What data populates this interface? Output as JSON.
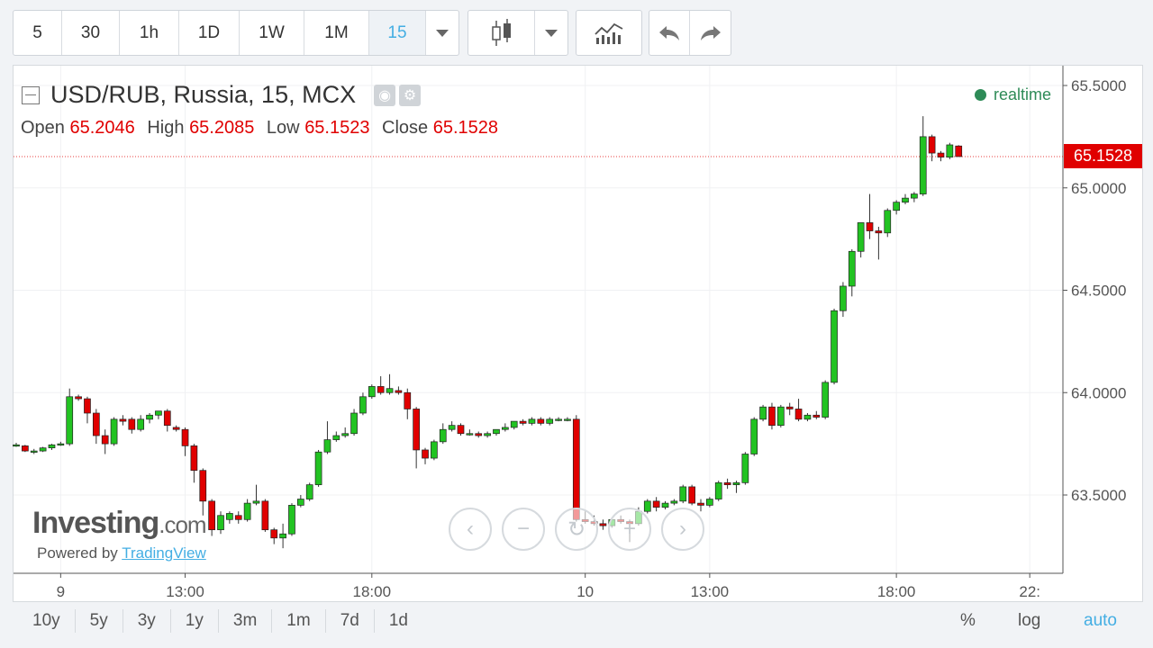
{
  "toolbar": {
    "intervals": [
      "5",
      "30",
      "1h",
      "1D",
      "1W",
      "1M"
    ],
    "active_interval": "15"
  },
  "legend": {
    "title": "USD/RUB, Russia, 15, MCX",
    "open_label": "Open",
    "open": "65.2046",
    "high_label": "High",
    "high": "65.2085",
    "low_label": "Low",
    "low": "65.1523",
    "close_label": "Close",
    "close": "65.1528",
    "realtime": "realtime"
  },
  "last_price": "65.1528",
  "watermark": {
    "brand": "Investing",
    "brand_suffix": ".com",
    "powered_by": "Powered by",
    "tradingview": "TradingView"
  },
  "ranges": [
    "10y",
    "5y",
    "3y",
    "1y",
    "3m",
    "1m",
    "7d",
    "1d"
  ],
  "options": {
    "percent": "%",
    "log": "log",
    "auto": "auto"
  },
  "colors": {
    "up": "#22c322",
    "down": "#e00000",
    "accent": "#44aee3"
  },
  "chart_data": {
    "type": "candlestick",
    "y_ticks": [
      "65.5000",
      "65.0000",
      "64.5000",
      "64.0000",
      "63.5000"
    ],
    "y_tick_values": [
      65.5,
      65.0,
      64.5,
      64.0,
      63.5
    ],
    "ylim": [
      63.1,
      65.6
    ],
    "x_ticks": [
      "9",
      "13:00",
      "18:00",
      "10",
      "13:00",
      "18:00",
      "22:"
    ],
    "x_tick_index": [
      5,
      19,
      40,
      64,
      78,
      99,
      114
    ],
    "last_price": 65.1528,
    "ohlc": [
      [
        63.745,
        63.755,
        63.735,
        63.745
      ],
      [
        63.74,
        63.745,
        63.71,
        63.715
      ],
      [
        63.715,
        63.725,
        63.7,
        63.715
      ],
      [
        63.715,
        63.735,
        63.71,
        63.73
      ],
      [
        63.73,
        63.75,
        63.72,
        63.745
      ],
      [
        63.745,
        63.76,
        63.74,
        63.75
      ],
      [
        63.75,
        64.02,
        63.74,
        63.98
      ],
      [
        63.98,
        63.99,
        63.96,
        63.97
      ],
      [
        63.97,
        63.98,
        63.85,
        63.9
      ],
      [
        63.9,
        63.92,
        63.75,
        63.79
      ],
      [
        63.79,
        63.82,
        63.7,
        63.75
      ],
      [
        63.75,
        63.88,
        63.74,
        63.87
      ],
      [
        63.87,
        63.89,
        63.84,
        63.86
      ],
      [
        63.87,
        63.88,
        63.8,
        63.82
      ],
      [
        63.82,
        63.89,
        63.81,
        63.87
      ],
      [
        63.87,
        63.9,
        63.85,
        63.89
      ],
      [
        63.89,
        63.91,
        63.87,
        63.91
      ],
      [
        63.91,
        63.92,
        63.81,
        63.84
      ],
      [
        63.83,
        63.84,
        63.81,
        63.82
      ],
      [
        63.82,
        63.83,
        63.69,
        63.74
      ],
      [
        63.74,
        63.75,
        63.56,
        63.62
      ],
      [
        63.62,
        63.63,
        63.4,
        63.47
      ],
      [
        63.47,
        63.48,
        63.3,
        63.33
      ],
      [
        63.33,
        63.42,
        63.31,
        63.4
      ],
      [
        63.38,
        63.42,
        63.36,
        63.41
      ],
      [
        63.4,
        63.42,
        63.36,
        63.38
      ],
      [
        63.38,
        63.48,
        63.37,
        63.46
      ],
      [
        63.46,
        63.55,
        63.45,
        63.47
      ],
      [
        63.47,
        63.48,
        63.32,
        63.33
      ],
      [
        63.33,
        63.34,
        63.26,
        63.29
      ],
      [
        63.29,
        63.36,
        63.24,
        63.31
      ],
      [
        63.31,
        63.46,
        63.3,
        63.45
      ],
      [
        63.45,
        63.5,
        63.44,
        63.48
      ],
      [
        63.48,
        63.56,
        63.47,
        63.55
      ],
      [
        63.55,
        63.72,
        63.54,
        63.71
      ],
      [
        63.71,
        63.86,
        63.7,
        63.77
      ],
      [
        63.77,
        63.81,
        63.76,
        63.79
      ],
      [
        63.79,
        63.83,
        63.78,
        63.8
      ],
      [
        63.8,
        63.92,
        63.79,
        63.9
      ],
      [
        63.9,
        64.0,
        63.89,
        63.98
      ],
      [
        63.98,
        64.04,
        63.97,
        64.03
      ],
      [
        64.03,
        64.08,
        63.99,
        64.0
      ],
      [
        64.0,
        64.09,
        63.99,
        64.02
      ],
      [
        64.01,
        64.03,
        63.99,
        64.0
      ],
      [
        64.0,
        64.02,
        63.87,
        63.92
      ],
      [
        63.92,
        63.93,
        63.63,
        63.72
      ],
      [
        63.72,
        63.73,
        63.65,
        63.68
      ],
      [
        63.68,
        63.77,
        63.67,
        63.76
      ],
      [
        63.76,
        63.85,
        63.75,
        63.82
      ],
      [
        63.82,
        63.86,
        63.81,
        63.84
      ],
      [
        63.84,
        63.85,
        63.79,
        63.8
      ],
      [
        63.8,
        63.82,
        63.79,
        63.8
      ],
      [
        63.8,
        63.81,
        63.78,
        63.79
      ],
      [
        63.79,
        63.81,
        63.78,
        63.8
      ],
      [
        63.8,
        63.82,
        63.79,
        63.82
      ],
      [
        63.82,
        63.85,
        63.81,
        63.83
      ],
      [
        63.83,
        63.86,
        63.82,
        63.86
      ],
      [
        63.86,
        63.87,
        63.84,
        63.85
      ],
      [
        63.85,
        63.88,
        63.84,
        63.87
      ],
      [
        63.87,
        63.88,
        63.84,
        63.85
      ],
      [
        63.85,
        63.88,
        63.84,
        63.87
      ],
      [
        63.87,
        63.88,
        63.86,
        63.87
      ],
      [
        63.87,
        63.88,
        63.86,
        63.87
      ],
      [
        63.87,
        63.89,
        63.37,
        63.38
      ],
      [
        63.38,
        63.42,
        63.36,
        63.37
      ],
      [
        63.37,
        63.4,
        63.35,
        63.36
      ],
      [
        63.36,
        63.38,
        63.33,
        63.35
      ],
      [
        63.35,
        63.39,
        63.34,
        63.38
      ],
      [
        63.38,
        63.4,
        63.36,
        63.37
      ],
      [
        63.37,
        63.38,
        63.27,
        63.36
      ],
      [
        63.36,
        63.44,
        63.35,
        63.42
      ],
      [
        63.42,
        63.48,
        63.41,
        63.47
      ],
      [
        63.47,
        63.49,
        63.42,
        63.44
      ],
      [
        63.44,
        63.47,
        63.43,
        63.46
      ],
      [
        63.46,
        63.48,
        63.45,
        63.47
      ],
      [
        63.47,
        63.55,
        63.46,
        63.54
      ],
      [
        63.54,
        63.55,
        63.45,
        63.46
      ],
      [
        63.46,
        63.48,
        63.42,
        63.45
      ],
      [
        63.45,
        63.49,
        63.44,
        63.48
      ],
      [
        63.48,
        63.57,
        63.47,
        63.56
      ],
      [
        63.56,
        63.58,
        63.53,
        63.55
      ],
      [
        63.55,
        63.57,
        63.51,
        63.56
      ],
      [
        63.56,
        63.71,
        63.55,
        63.7
      ],
      [
        63.7,
        63.88,
        63.69,
        63.87
      ],
      [
        63.87,
        63.94,
        63.86,
        63.93
      ],
      [
        63.93,
        63.95,
        63.82,
        63.84
      ],
      [
        63.84,
        63.94,
        63.83,
        63.93
      ],
      [
        63.93,
        63.95,
        63.89,
        63.92
      ],
      [
        63.92,
        63.97,
        63.86,
        63.87
      ],
      [
        63.87,
        63.9,
        63.86,
        63.89
      ],
      [
        63.89,
        63.91,
        63.87,
        63.88
      ],
      [
        63.88,
        64.06,
        63.87,
        64.05
      ],
      [
        64.05,
        64.41,
        64.04,
        64.4
      ],
      [
        64.4,
        64.54,
        64.37,
        64.52
      ],
      [
        64.52,
        64.7,
        64.47,
        64.69
      ],
      [
        64.69,
        64.83,
        64.66,
        64.83
      ],
      [
        64.83,
        64.97,
        64.75,
        64.79
      ],
      [
        64.79,
        64.81,
        64.65,
        64.78
      ],
      [
        64.78,
        64.9,
        64.76,
        64.89
      ],
      [
        64.89,
        64.94,
        64.87,
        64.93
      ],
      [
        64.93,
        64.97,
        64.92,
        64.95
      ],
      [
        64.95,
        64.98,
        64.93,
        64.97
      ],
      [
        64.97,
        65.35,
        64.96,
        65.25
      ],
      [
        65.25,
        65.26,
        65.13,
        65.17
      ],
      [
        65.17,
        65.18,
        65.13,
        65.15
      ],
      [
        65.15,
        65.22,
        65.14,
        65.21
      ],
      [
        65.2046,
        65.2085,
        65.1523,
        65.1528
      ]
    ]
  }
}
